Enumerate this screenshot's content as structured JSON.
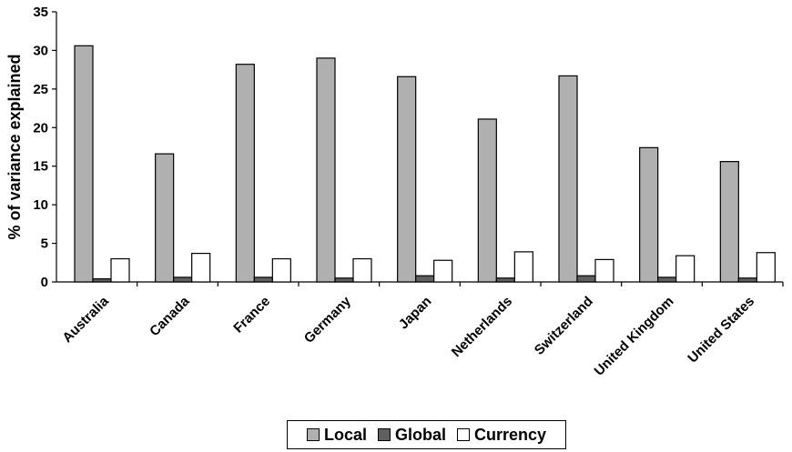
{
  "chart_data": {
    "type": "bar",
    "title": "",
    "xlabel": "",
    "ylabel": "% of variance explained",
    "ylim": [
      0,
      35
    ],
    "yticks": [
      0,
      5,
      10,
      15,
      20,
      25,
      30,
      35
    ],
    "grid": false,
    "legend_position": "bottom",
    "categories": [
      "Australia",
      "Canada",
      "France",
      "Germany",
      "Japan",
      "Netherlands",
      "Switzerland",
      "United Kingdom",
      "United States"
    ],
    "series": [
      {
        "name": "Local",
        "color": "#b0b0b0",
        "values": [
          30.6,
          16.6,
          28.2,
          29.0,
          26.6,
          21.1,
          26.7,
          17.4,
          15.6
        ]
      },
      {
        "name": "Global",
        "color": "#606060",
        "values": [
          0.4,
          0.6,
          0.6,
          0.5,
          0.8,
          0.5,
          0.8,
          0.6,
          0.5
        ]
      },
      {
        "name": "Currency",
        "color": "#ffffff",
        "values": [
          3.0,
          3.7,
          3.0,
          3.0,
          2.8,
          3.9,
          2.9,
          3.4,
          3.8
        ]
      }
    ]
  }
}
